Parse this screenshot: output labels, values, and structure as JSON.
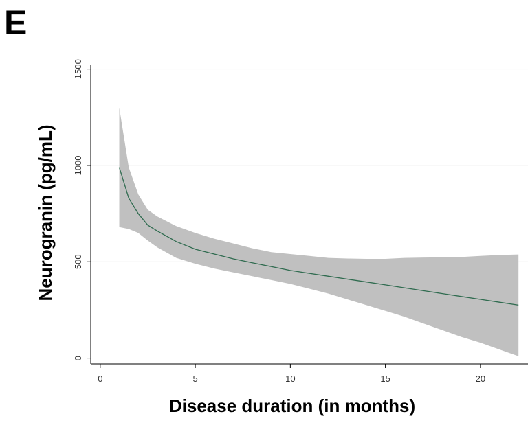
{
  "panel_label": "E",
  "chart_data": {
    "type": "line",
    "title": "",
    "xlabel": "Disease duration (in months)",
    "ylabel": "Neurogranin (pg/mL)",
    "xlim": [
      -0.5,
      22.5
    ],
    "ylim": [
      -30,
      1520
    ],
    "x_ticks": [
      0,
      5,
      10,
      15,
      20
    ],
    "y_ticks": [
      0,
      500,
      1000,
      1500
    ],
    "grid": "horizontal",
    "colors": {
      "line": "#2f6b4f",
      "band": "#c0c0c0",
      "grid": "#eeeeee",
      "axis": "#000000"
    },
    "series": [
      {
        "x": [
          1,
          1.5,
          2,
          2.5,
          3,
          4,
          5,
          6,
          7,
          8,
          9,
          10,
          11,
          12,
          13,
          14,
          15,
          16,
          17,
          18,
          19,
          20,
          21,
          22
        ],
        "y": [
          990,
          830,
          750,
          690,
          660,
          605,
          565,
          540,
          515,
          495,
          475,
          455,
          440,
          425,
          410,
          395,
          380,
          365,
          350,
          335,
          320,
          305,
          290,
          275
        ],
        "ci_low": [
          680,
          670,
          650,
          610,
          575,
          520,
          490,
          465,
          445,
          425,
          405,
          385,
          360,
          335,
          305,
          275,
          245,
          215,
          180,
          145,
          110,
          80,
          45,
          10
        ],
        "ci_high": [
          1300,
          990,
          850,
          770,
          735,
          685,
          650,
          620,
          595,
          570,
          550,
          540,
          530,
          520,
          517,
          515,
          515,
          520,
          522,
          523,
          525,
          530,
          535,
          538
        ]
      }
    ]
  }
}
